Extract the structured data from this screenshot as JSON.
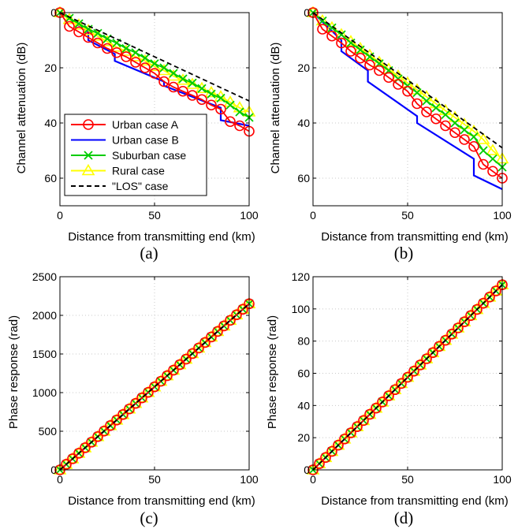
{
  "colors": {
    "urban_a": "#ff0000",
    "urban_b": "#0000ff",
    "suburban": "#00cc00",
    "rural": "#ffff00",
    "los": "#000000",
    "grid": "#c8c8c8",
    "axes": "#000000"
  },
  "chart_data": [
    {
      "type": "line",
      "caption": "(a)",
      "xlabel": "Distance from transmitting end (km)",
      "ylabel": "Channel attenuation (dB)",
      "xlim": [
        0,
        100
      ],
      "ylim": [
        0,
        70
      ],
      "y_reversed": true,
      "xticks": [
        0,
        50,
        100
      ],
      "yticks": [
        0,
        20,
        40,
        60
      ],
      "grid": true,
      "legend": {
        "placement": "bottom-left",
        "entries": [
          "Urban case A",
          "Urban case B",
          "Suburban case",
          "Rural case",
          "\"LOS\" case"
        ]
      },
      "series": [
        {
          "name": "Urban case A",
          "color": "red",
          "marker": "circle",
          "linestyle": "solid",
          "x": [
            0,
            5,
            10,
            15,
            20,
            25,
            30,
            35,
            40,
            45,
            50,
            55,
            60,
            65,
            70,
            75,
            80,
            85,
            90,
            95,
            100
          ],
          "y": [
            0,
            5,
            7,
            9,
            11,
            13,
            14.5,
            16,
            18,
            20,
            22,
            25,
            27,
            28.5,
            30,
            31.5,
            33.5,
            35,
            39.5,
            41,
            43
          ]
        },
        {
          "name": "Urban case B",
          "color": "blue",
          "marker": "none",
          "linestyle": "solid",
          "x": [
            0,
            15,
            15,
            29,
            29,
            55,
            55,
            85,
            85,
            100
          ],
          "y": [
            0,
            7,
            10,
            15,
            17.5,
            25,
            26.5,
            34.5,
            39,
            41
          ]
        },
        {
          "name": "Suburban case",
          "color": "green",
          "marker": "x",
          "linestyle": "solid",
          "x": [
            0,
            5,
            10,
            15,
            20,
            25,
            30,
            35,
            40,
            45,
            50,
            55,
            60,
            65,
            70,
            75,
            80,
            85,
            90,
            95,
            100
          ],
          "y": [
            0,
            2,
            4,
            6,
            7.5,
            9.5,
            11,
            13,
            14.5,
            16.5,
            18.5,
            20,
            22,
            24,
            25.5,
            27.5,
            29.5,
            31,
            33.5,
            36,
            38
          ]
        },
        {
          "name": "Rural case",
          "color": "yellow",
          "marker": "triangle",
          "linestyle": "solid",
          "x": [
            0,
            5,
            10,
            15,
            20,
            25,
            30,
            35,
            40,
            45,
            50,
            55,
            60,
            65,
            70,
            75,
            80,
            85,
            90,
            95,
            100
          ],
          "y": [
            0,
            2.5,
            4.5,
            6.5,
            8.5,
            10.5,
            12.5,
            14,
            16,
            17.5,
            19.5,
            21,
            23,
            24.5,
            26,
            27.5,
            29,
            30.5,
            32.5,
            34.5,
            36
          ]
        },
        {
          "name": "\"LOS\" case",
          "color": "black",
          "marker": "none",
          "linestyle": "dashed",
          "x": [
            0,
            100
          ],
          "y": [
            0,
            32
          ]
        }
      ]
    },
    {
      "type": "line",
      "caption": "(b)",
      "xlabel": "Distance from transmitting end (km)",
      "ylabel": "Channel attenuation (dB)",
      "xlim": [
        0,
        100
      ],
      "ylim": [
        0,
        70
      ],
      "y_reversed": true,
      "xticks": [
        0,
        50,
        100
      ],
      "yticks": [
        0,
        20,
        40,
        60
      ],
      "grid": true,
      "series": [
        {
          "name": "Urban case A",
          "color": "red",
          "marker": "circle",
          "linestyle": "solid",
          "x": [
            0,
            5,
            10,
            15,
            20,
            25,
            30,
            35,
            40,
            45,
            50,
            55,
            60,
            65,
            70,
            75,
            80,
            85,
            90,
            95,
            100
          ],
          "y": [
            0,
            6,
            8.5,
            11,
            14,
            16.5,
            19,
            21,
            23.5,
            26,
            28.5,
            33,
            36,
            38.5,
            41,
            43.5,
            46,
            48.5,
            55,
            57.5,
            60
          ]
        },
        {
          "name": "Urban case B",
          "color": "blue",
          "marker": "none",
          "linestyle": "solid",
          "x": [
            0,
            15,
            15,
            29,
            29,
            55,
            55,
            85,
            85,
            100
          ],
          "y": [
            0,
            10,
            14,
            21,
            25,
            37.5,
            40,
            53,
            59,
            64
          ]
        },
        {
          "name": "Suburban case",
          "color": "green",
          "marker": "x",
          "linestyle": "solid",
          "x": [
            0,
            5,
            10,
            15,
            20,
            25,
            30,
            35,
            40,
            45,
            50,
            55,
            60,
            65,
            70,
            75,
            80,
            85,
            90,
            95,
            100
          ],
          "y": [
            0,
            3,
            5.5,
            8,
            11,
            13.5,
            16,
            18.5,
            21,
            24,
            26.5,
            29,
            32,
            34.5,
            37,
            40,
            42.5,
            45,
            50,
            53,
            56
          ]
        },
        {
          "name": "Rural case",
          "color": "yellow",
          "marker": "triangle",
          "linestyle": "solid",
          "x": [
            0,
            5,
            10,
            15,
            20,
            25,
            30,
            35,
            40,
            45,
            50,
            55,
            60,
            65,
            70,
            75,
            80,
            85,
            90,
            95,
            100
          ],
          "y": [
            0,
            3,
            5.5,
            8,
            10.5,
            13,
            15.5,
            18,
            20.5,
            23,
            25.5,
            28,
            30.5,
            33,
            35.5,
            38,
            40.5,
            43,
            46,
            50,
            53
          ]
        },
        {
          "name": "\"LOS\" case",
          "color": "black",
          "marker": "none",
          "linestyle": "dashed",
          "x": [
            0,
            100
          ],
          "y": [
            0,
            49
          ]
        }
      ]
    },
    {
      "type": "line",
      "caption": "(c)",
      "xlabel": "Distance from transmitting end (km)",
      "ylabel": "Phase response (rad)",
      "xlim": [
        0,
        100
      ],
      "ylim": [
        0,
        2500
      ],
      "y_reversed": false,
      "xticks": [
        0,
        50,
        100
      ],
      "yticks": [
        0,
        500,
        1000,
        1500,
        2000,
        2500
      ],
      "grid": true,
      "series": [
        {
          "name": "Urban case A",
          "color": "red",
          "marker": "circle",
          "linestyle": "solid",
          "x": [
            0,
            100
          ],
          "y": [
            0,
            2150
          ],
          "marker_count": 30
        },
        {
          "name": "Urban case B",
          "color": "blue",
          "marker": "none",
          "linestyle": "solid",
          "x": [
            0,
            100
          ],
          "y": [
            0,
            2150
          ]
        },
        {
          "name": "Suburban case",
          "color": "green",
          "marker": "x",
          "linestyle": "solid",
          "x": [
            0,
            100
          ],
          "y": [
            0,
            2150
          ],
          "marker_count": 30
        },
        {
          "name": "Rural case",
          "color": "yellow",
          "marker": "triangle",
          "linestyle": "solid",
          "x": [
            0,
            100
          ],
          "y": [
            0,
            2150
          ],
          "marker_count": 30
        },
        {
          "name": "\"LOS\" case",
          "color": "black",
          "marker": "none",
          "linestyle": "dashed",
          "x": [
            0,
            100
          ],
          "y": [
            0,
            2150
          ]
        }
      ]
    },
    {
      "type": "line",
      "caption": "(d)",
      "xlabel": "Distance from transmitting end (km)",
      "ylabel": "Phase response (rad)",
      "xlim": [
        0,
        100
      ],
      "ylim": [
        0,
        120
      ],
      "y_reversed": false,
      "xticks": [
        0,
        50,
        100
      ],
      "yticks": [
        0,
        20,
        40,
        60,
        80,
        100,
        120
      ],
      "grid": true,
      "series": [
        {
          "name": "Urban case A",
          "color": "red",
          "marker": "circle",
          "linestyle": "solid",
          "x": [
            0,
            100
          ],
          "y": [
            0,
            115
          ],
          "marker_count": 30
        },
        {
          "name": "Urban case B",
          "color": "blue",
          "marker": "none",
          "linestyle": "solid",
          "x": [
            0,
            100
          ],
          "y": [
            0,
            115
          ]
        },
        {
          "name": "Suburban case",
          "color": "green",
          "marker": "x",
          "linestyle": "solid",
          "x": [
            0,
            100
          ],
          "y": [
            0,
            115
          ],
          "marker_count": 30
        },
        {
          "name": "Rural case",
          "color": "yellow",
          "marker": "triangle",
          "linestyle": "solid",
          "x": [
            0,
            100
          ],
          "y": [
            0,
            115
          ],
          "marker_count": 30
        },
        {
          "name": "\"LOS\" case",
          "color": "black",
          "marker": "none",
          "linestyle": "dashed",
          "x": [
            0,
            100
          ],
          "y": [
            0,
            115
          ]
        }
      ]
    }
  ]
}
